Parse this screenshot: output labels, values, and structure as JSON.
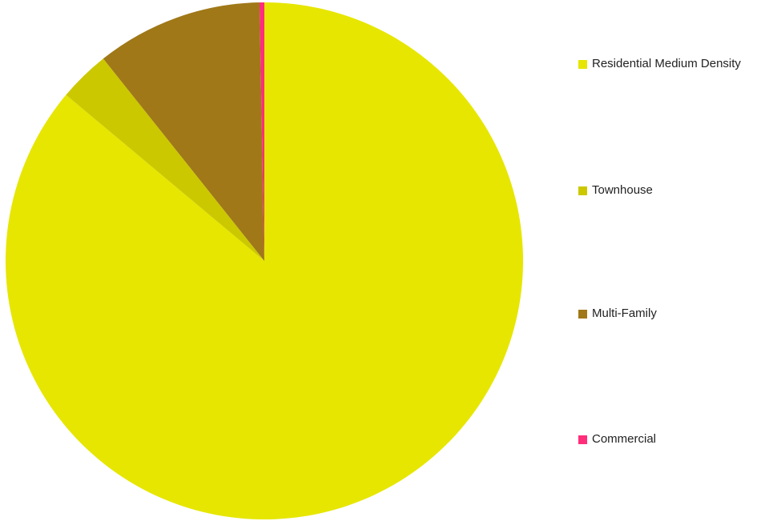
{
  "chart_data": {
    "type": "pie",
    "title": "",
    "start_angle_deg": 0,
    "direction": "clockwise",
    "categories": [
      "Residential Medium Density",
      "Townhouse",
      "Multi-Family",
      "Commercial"
    ],
    "values": [
      86.1,
      3.2,
      10.4,
      0.3
    ],
    "unit": "percent (estimated share)",
    "colors": [
      "#E6E600",
      "#CCC800",
      "#A07818",
      "#FF2D7A"
    ],
    "legend_position": "right"
  }
}
